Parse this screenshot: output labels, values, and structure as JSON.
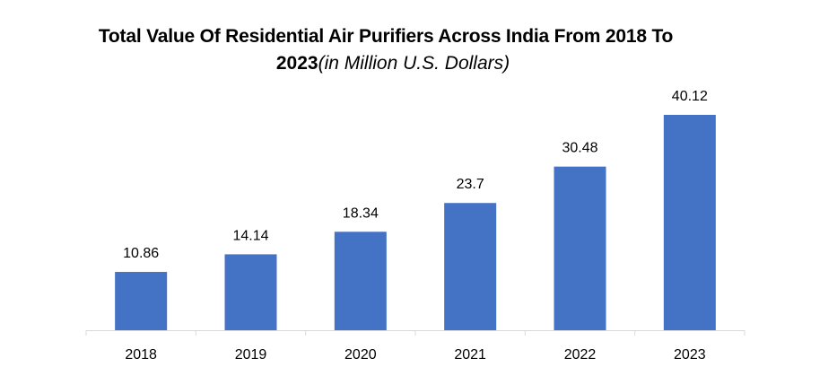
{
  "chart_data": {
    "type": "bar",
    "title": "Total Value Of Residential Air Purifiers Across India From 2018 To",
    "title_year": "2023",
    "title_unit": "(in Million U.S. Dollars)",
    "categories": [
      "2018",
      "2019",
      "2020",
      "2021",
      "2022",
      "2023"
    ],
    "values": [
      10.86,
      14.14,
      18.34,
      23.7,
      30.48,
      40.12
    ],
    "data_labels": [
      "10.86",
      "14.14",
      "18.34",
      "23.7",
      "30.48",
      "40.12"
    ],
    "xlabel": "",
    "ylabel": "",
    "ylim": [
      0,
      40.12
    ],
    "grid": false,
    "legend": "none",
    "bar_color": "#4472C4",
    "axis_color": "#D9D9D9"
  }
}
